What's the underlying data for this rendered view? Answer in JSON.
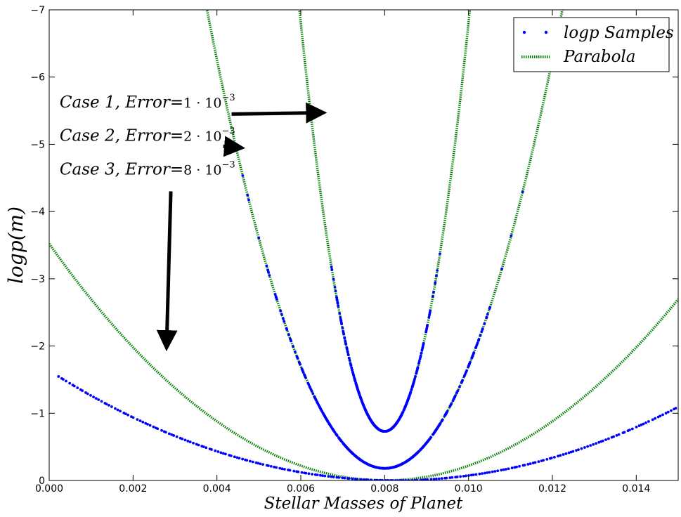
{
  "chart_data": {
    "type": "scatter",
    "xlabel": "Stellar Masses of Planet",
    "ylabel": "logp(m)",
    "xlim": [
      0.0,
      0.015
    ],
    "ylim": [
      0,
      -7
    ],
    "x_ticks": [
      "0.000",
      "0.002",
      "0.004",
      "0.006",
      "0.008",
      "0.010",
      "0.012",
      "0.014"
    ],
    "x_tick_values": [
      0.0,
      0.002,
      0.004,
      0.006,
      0.008,
      0.01,
      0.012,
      0.014
    ],
    "y_ticks": [
      "0",
      "−1",
      "−2",
      "−3",
      "−4",
      "−5",
      "−6",
      "−7"
    ],
    "y_tick_values": [
      0,
      -1,
      -2,
      -3,
      -4,
      -5,
      -6,
      -7
    ],
    "grid": false,
    "legend_position": "top-right",
    "legend": [
      {
        "label": "logp Samples",
        "style": "dots",
        "color": "#0000ff"
      },
      {
        "label": "Parabola",
        "style": "dotted-line",
        "color": "#008000"
      }
    ],
    "series": [
      {
        "kind": "samples",
        "case": 1,
        "center": 0.008,
        "min_value": -0.73,
        "curvature": 1520000.0,
        "x_range": [
          0.0065,
          0.0095
        ],
        "color": "#0000ff"
      },
      {
        "kind": "samples",
        "case": 2,
        "center": 0.008,
        "min_value": -0.18,
        "curvature": 380000.0,
        "x_range": [
          0.0044,
          0.0115
        ],
        "color": "#0000ff"
      },
      {
        "kind": "samples",
        "case": 3,
        "center": 0.00825,
        "min_value": 0.0,
        "curvature": 24000.0,
        "x_range": [
          0.0002,
          0.015
        ],
        "color": "#0000ff"
      },
      {
        "kind": "parabola",
        "case": 1,
        "center": 0.008,
        "min_value": -0.73,
        "curvature": 1520000.0,
        "color": "#008000"
      },
      {
        "kind": "parabola",
        "case": 2,
        "center": 0.008,
        "min_value": -0.18,
        "curvature": 380000.0,
        "color": "#008000"
      },
      {
        "kind": "parabola",
        "case": 3,
        "center": 0.008,
        "min_value": 0.0,
        "curvature": 55000.0,
        "color": "#008000"
      }
    ],
    "annotations": [
      {
        "id": "case1",
        "prefix": "Case 1, Error=",
        "mantissa": "1",
        "base": "10",
        "exponent": "−3",
        "text_xy": [
          0.00025,
          -5.55
        ],
        "arrow_from": [
          0.00435,
          -5.45
        ],
        "arrow_to": [
          0.0065,
          -5.47
        ]
      },
      {
        "id": "case2",
        "prefix": "Case 2, Error=",
        "mantissa": "2",
        "base": "10",
        "exponent": "−3",
        "text_xy": [
          0.00025,
          -5.05
        ],
        "arrow_from": [
          0.00415,
          -4.97
        ],
        "arrow_to": [
          0.00455,
          -4.95
        ]
      },
      {
        "id": "case3",
        "prefix": "Case 3, Error=",
        "mantissa": "8",
        "base": "10",
        "exponent": "−3",
        "text_xy": [
          0.00025,
          -4.55
        ],
        "arrow_from": [
          0.0029,
          -4.3
        ],
        "arrow_to": [
          0.0028,
          -2.0
        ]
      }
    ]
  }
}
